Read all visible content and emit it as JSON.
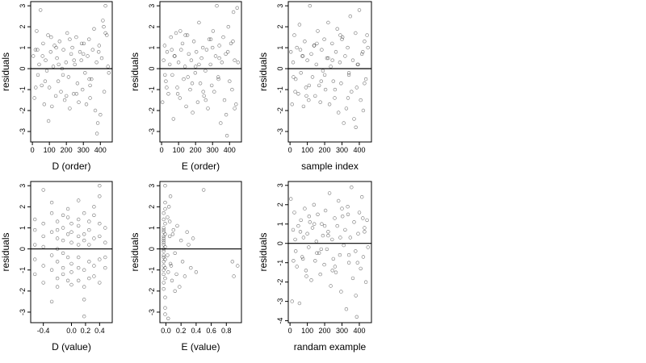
{
  "chart_data": [
    {
      "type": "scatter",
      "xlabel": "D (order)",
      "ylabel": "residuals",
      "xlim": [
        -10,
        470
      ],
      "ylim": [
        -3.5,
        3.2
      ],
      "xticks": [
        0,
        100,
        200,
        300,
        400
      ],
      "yticks": [
        -3,
        -2,
        -1,
        0,
        1,
        2,
        3
      ],
      "hline": 0,
      "grid": false,
      "x": [
        5,
        12,
        18,
        25,
        33,
        40,
        48,
        55,
        63,
        70,
        78,
        85,
        92,
        100,
        108,
        115,
        123,
        130,
        138,
        145,
        152,
        160,
        168,
        175,
        183,
        190,
        198,
        205,
        213,
        220,
        228,
        235,
        243,
        250,
        258,
        265,
        273,
        280,
        288,
        295,
        303,
        310,
        318,
        325,
        333,
        340,
        348,
        355,
        363,
        370,
        378,
        385,
        393,
        400,
        408,
        415,
        423,
        430,
        438,
        445,
        20,
        60,
        95,
        140,
        180,
        220,
        260,
        300,
        340,
        380,
        420,
        30,
        75,
        110,
        155,
        200,
        245,
        290,
        335,
        390,
        430,
        450
      ],
      "y": [
        0.6,
        -1.4,
        0.9,
        1.8,
        -0.3,
        0.2,
        2.8,
        -0.8,
        1.2,
        -1.7,
        0.4,
        -0.1,
        1.6,
        -0.9,
        0.8,
        -1.8,
        0.1,
        1.1,
        -1.3,
        0.5,
        -0.6,
        1.3,
        -1.1,
        0.0,
        0.9,
        -1.5,
        0.3,
        1.7,
        -0.4,
        -1.9,
        0.7,
        1.0,
        -1.2,
        0.2,
        1.5,
        -0.7,
        -1.6,
        0.8,
        0.4,
        -1.0,
        1.2,
        -0.2,
        -1.7,
        0.6,
        1.4,
        -1.4,
        -0.5,
        0.9,
        1.9,
        -2.0,
        0.3,
        -2.6,
        1.1,
        -2.2,
        0.5,
        2.3,
        -1.1,
        3.0,
        1.6,
        0.1,
        -0.9,
        0.6,
        -2.5,
        1.0,
        -0.3,
        1.4,
        -1.2,
        0.7,
        -0.8,
        -3.1,
        2.0,
        0.9,
        -0.6,
        1.5,
        0.2,
        -1.3,
        0.4,
        1.2,
        -0.5,
        0.8,
        1.7,
        -0.2
      ]
    },
    {
      "type": "scatter",
      "xlabel": "E (order)",
      "ylabel": "residuals",
      "xlim": [
        -10,
        470
      ],
      "ylim": [
        -3.5,
        3.2
      ],
      "xticks": [
        0,
        100,
        200,
        300,
        400
      ],
      "yticks": [
        -3,
        -2,
        -1,
        0,
        1,
        2,
        3
      ],
      "hline": 0,
      "grid": false,
      "x": [
        5,
        12,
        18,
        25,
        33,
        40,
        48,
        55,
        63,
        70,
        78,
        85,
        92,
        100,
        108,
        115,
        123,
        130,
        138,
        145,
        152,
        160,
        168,
        175,
        183,
        190,
        198,
        205,
        213,
        220,
        228,
        235,
        243,
        250,
        258,
        265,
        273,
        280,
        288,
        295,
        303,
        310,
        318,
        325,
        333,
        340,
        348,
        355,
        363,
        370,
        378,
        385,
        393,
        400,
        408,
        415,
        423,
        430,
        438,
        445,
        20,
        60,
        95,
        140,
        180,
        220,
        260,
        300,
        340,
        380,
        420,
        30,
        75,
        110,
        155,
        200,
        245,
        290,
        335,
        390,
        430,
        450
      ],
      "y": [
        -1.6,
        0.4,
        1.1,
        -0.6,
        0.8,
        -1.2,
        0.2,
        1.5,
        -0.3,
        -2.4,
        0.6,
        1.7,
        -0.9,
        0.3,
        -1.4,
        0.9,
        1.2,
        -0.5,
        0.1,
        -1.8,
        1.6,
        0.7,
        -1.0,
        0.4,
        -2.1,
        1.3,
        -0.2,
        0.8,
        -1.6,
        2.2,
        -0.7,
        0.5,
        1.0,
        -1.3,
        -0.1,
        0.9,
        -1.9,
        1.4,
        0.2,
        -0.8,
        1.8,
        -1.1,
        0.6,
        3.0,
        -0.4,
        1.1,
        -2.6,
        0.3,
        1.5,
        -1.5,
        0.7,
        -3.2,
        2.0,
        -0.6,
        1.2,
        -1.0,
        2.7,
        0.4,
        -1.7,
        2.9,
        -0.3,
        0.9,
        -1.2,
        1.6,
        -0.7,
        0.2,
        -1.5,
        1.0,
        0.5,
        -2.2,
        1.3,
        -0.9,
        0.6,
        1.8,
        -0.4,
        0.1,
        -1.1,
        1.4,
        -0.5,
        0.8,
        -1.9,
        0.3
      ]
    },
    {
      "type": "scatter",
      "xlabel": "sample index",
      "ylabel": "residuals",
      "xlim": [
        -10,
        470
      ],
      "ylim": [
        -3.5,
        3.2
      ],
      "xticks": [
        0,
        100,
        200,
        300,
        400
      ],
      "yticks": [
        -3,
        -2,
        -1,
        0,
        1,
        2,
        3
      ],
      "hline": 0,
      "grid": false,
      "x": [
        5,
        12,
        18,
        25,
        33,
        40,
        48,
        55,
        63,
        70,
        78,
        85,
        92,
        100,
        108,
        115,
        123,
        130,
        138,
        145,
        152,
        160,
        168,
        175,
        183,
        190,
        198,
        205,
        213,
        220,
        228,
        235,
        243,
        250,
        258,
        265,
        273,
        280,
        288,
        295,
        303,
        310,
        318,
        325,
        333,
        340,
        348,
        355,
        363,
        370,
        378,
        385,
        393,
        400,
        408,
        415,
        423,
        430,
        438,
        445,
        20,
        60,
        95,
        140,
        180,
        220,
        260,
        300,
        340,
        380,
        420,
        30,
        75,
        110,
        155,
        200,
        245,
        290,
        335,
        390,
        430,
        450
      ],
      "y": [
        0.8,
        -1.7,
        0.3,
        1.6,
        -0.5,
        1.0,
        -1.2,
        2.1,
        -0.2,
        0.6,
        -1.8,
        1.3,
        -0.9,
        0.4,
        -1.5,
        3.0,
        0.7,
        -0.4,
        1.1,
        -1.3,
        0.2,
        1.8,
        -0.8,
        -1.6,
        0.9,
        -0.1,
        1.4,
        -1.0,
        0.5,
        2.2,
        -1.7,
        0.1,
        1.2,
        -0.6,
        -1.4,
        0.8,
        1.9,
        -2.1,
        0.3,
        -0.7,
        1.5,
        -2.6,
        0.6,
        -1.9,
        1.0,
        -0.3,
        2.5,
        -1.1,
        0.4,
        -2.4,
        1.7,
        -0.9,
        0.2,
        2.8,
        -1.5,
        0.7,
        -2.0,
        1.3,
        -0.5,
        1.6,
        -0.4,
        0.9,
        -1.3,
        1.1,
        -0.6,
        0.5,
        -1.0,
        1.4,
        -0.2,
        -2.8,
        0.8,
        -1.1,
        0.6,
        -0.8,
        1.2,
        -0.3,
        0.4,
        1.6,
        -1.4,
        0.2,
        -0.7,
        1.0
      ]
    },
    {
      "type": "scatter",
      "xlabel": "D (value)",
      "ylabel": "residuals",
      "xlim": [
        -0.58,
        0.58
      ],
      "ylim": [
        -3.5,
        3.2
      ],
      "xticks": [
        -0.4,
        0.0,
        0.2,
        0.4
      ],
      "xticklabels": [
        "-0.4",
        "0.0",
        "0.2",
        "0.4"
      ],
      "yticks": [
        -3,
        -2,
        -1,
        0,
        1,
        2,
        3
      ],
      "hline": 0,
      "grid": false,
      "x": [
        -0.52,
        -0.52,
        -0.52,
        -0.52,
        -0.52,
        -0.4,
        -0.4,
        -0.4,
        -0.4,
        -0.4,
        -0.4,
        -0.28,
        -0.28,
        -0.28,
        -0.28,
        -0.28,
        -0.28,
        -0.2,
        -0.2,
        -0.2,
        -0.2,
        -0.2,
        -0.2,
        -0.2,
        -0.12,
        -0.12,
        -0.12,
        -0.12,
        -0.12,
        -0.12,
        -0.05,
        -0.05,
        -0.05,
        -0.05,
        -0.05,
        0.0,
        0.0,
        0.0,
        0.0,
        0.0,
        0.0,
        0.1,
        0.1,
        0.1,
        0.1,
        0.1,
        0.1,
        0.1,
        0.1,
        0.18,
        0.18,
        0.18,
        0.18,
        0.18,
        0.18,
        0.18,
        0.25,
        0.25,
        0.25,
        0.25,
        0.25,
        0.32,
        0.32,
        0.32,
        0.32,
        0.32,
        0.4,
        0.4,
        0.4,
        0.4,
        0.4,
        0.4,
        0.48,
        0.48,
        0.48,
        0.48
      ],
      "y": [
        0.9,
        -0.5,
        1.4,
        -1.2,
        0.2,
        2.8,
        0.6,
        -0.8,
        1.2,
        -1.6,
        0.1,
        1.7,
        -0.3,
        0.8,
        -1.0,
        2.2,
        -2.5,
        0.5,
        -1.8,
        1.3,
        -0.6,
        0.9,
        -1.4,
        0.0,
        1.0,
        -0.9,
        1.6,
        -1.2,
        0.4,
        -0.2,
        0.7,
        -1.5,
        1.5,
        -0.4,
        1.9,
        -1.7,
        0.3,
        1.2,
        -0.7,
        -1.1,
        0.8,
        1.1,
        0.6,
        -0.9,
        0.2,
        1.4,
        -0.4,
        -1.5,
        2.3,
        -1.8,
        0.7,
        -3.2,
        -1.0,
        0.4,
        1.7,
        -2.4,
        0.9,
        -0.6,
        1.3,
        -1.4,
        0.2,
        1.6,
        -0.8,
        0.5,
        -1.3,
        2.0,
        3.0,
        1.2,
        -0.5,
        0.6,
        -1.6,
        2.5,
        0.3,
        -0.9,
        1.0,
        -0.4
      ]
    },
    {
      "type": "scatter",
      "xlabel": "E (value)",
      "ylabel": "residuals",
      "xlim": [
        -0.08,
        1.0
      ],
      "ylim": [
        -3.5,
        3.2
      ],
      "xticks": [
        0.0,
        0.2,
        0.4,
        0.6,
        0.8
      ],
      "xticklabels": [
        "0.0",
        "0.2",
        "0.4",
        "0.6",
        "0.8"
      ],
      "yticks": [
        -3,
        -2,
        -1,
        0,
        1,
        2,
        3
      ],
      "hline": 0,
      "grid": false,
      "x": [
        -0.03,
        -0.03,
        -0.03,
        -0.03,
        -0.03,
        -0.03,
        -0.03,
        -0.03,
        -0.03,
        -0.03,
        -0.03,
        -0.03,
        -0.03,
        -0.03,
        -0.03,
        -0.03,
        -0.03,
        -0.03,
        -0.03,
        -0.03,
        -0.01,
        -0.01,
        -0.01,
        -0.01,
        -0.01,
        -0.01,
        -0.01,
        -0.01,
        -0.01,
        -0.01,
        -0.01,
        -0.01,
        0.02,
        0.03,
        0.05,
        0.06,
        0.04,
        0.08,
        0.1,
        0.12,
        0.15,
        0.18,
        0.2,
        0.22,
        0.25,
        0.28,
        0.3,
        0.33,
        0.36,
        0.4,
        0.5,
        0.02,
        0.05,
        0.07,
        0.09,
        0.14,
        0.9,
        0.95,
        0.88,
        0.12,
        0.03,
        0.06
      ],
      "y": [
        -0.4,
        0.2,
        0.6,
        -0.8,
        1.0,
        -1.2,
        0.4,
        -0.1,
        0.8,
        -0.6,
        1.4,
        -1.6,
        0.3,
        -0.3,
        0.9,
        -1.0,
        1.7,
        -1.9,
        0.0,
        0.5,
        -0.5,
        0.7,
        -0.9,
        1.2,
        -1.4,
        0.1,
        2.2,
        -2.8,
        1.9,
        -2.3,
        3.0,
        -3.1,
        1.5,
        -1.1,
        0.6,
        -0.7,
        2.0,
        -1.5,
        0.9,
        -0.2,
        1.1,
        -1.8,
        0.4,
        -0.6,
        -1.3,
        0.8,
        0.2,
        -0.9,
        0.5,
        -1.1,
        2.8,
        -0.3,
        1.3,
        -0.8,
        0.7,
        -1.2,
        -1.3,
        -0.8,
        -0.6,
        -2.0,
        -3.3,
        2.5
      ]
    },
    {
      "type": "scatter",
      "xlabel": "randam example",
      "ylabel": "residuals",
      "xlim": [
        -10,
        470
      ],
      "ylim": [
        -4.1,
        3.2
      ],
      "xticks": [
        0,
        100,
        200,
        300,
        400
      ],
      "yticks": [
        -4,
        -3,
        -2,
        -1,
        0,
        1,
        2,
        3
      ],
      "hline": 0,
      "grid": false,
      "x": [
        5,
        12,
        18,
        25,
        33,
        40,
        48,
        55,
        63,
        70,
        78,
        85,
        92,
        100,
        108,
        115,
        123,
        130,
        138,
        145,
        152,
        160,
        168,
        175,
        183,
        190,
        198,
        205,
        213,
        220,
        228,
        235,
        243,
        250,
        258,
        265,
        273,
        280,
        288,
        295,
        303,
        310,
        318,
        325,
        333,
        340,
        348,
        355,
        363,
        370,
        378,
        385,
        393,
        400,
        408,
        415,
        423,
        430,
        438,
        445,
        20,
        60,
        95,
        140,
        180,
        220,
        260,
        300,
        340,
        380,
        420,
        30,
        75,
        110,
        155,
        200,
        245,
        290,
        335,
        390,
        430,
        450
      ],
      "y": [
        2.3,
        -3.0,
        0.7,
        1.6,
        -0.4,
        -1.2,
        0.9,
        -3.1,
        1.2,
        -0.7,
        0.3,
        1.8,
        -1.4,
        0.5,
        -0.2,
        1.1,
        -1.9,
        0.8,
        2.0,
        -0.9,
        0.1,
        1.5,
        -0.5,
        -1.6,
        1.0,
        0.4,
        -1.1,
        1.7,
        -0.3,
        0.6,
        2.6,
        -2.2,
        0.2,
        -0.8,
        1.3,
        -1.5,
        0.9,
        2.2,
        -0.6,
        -2.5,
        1.4,
        -0.1,
        0.7,
        -3.4,
        1.9,
        -1.0,
        0.3,
        2.9,
        -1.8,
        1.1,
        -0.4,
        -3.8,
        0.5,
        1.6,
        -1.3,
        2.4,
        -0.7,
        0.8,
        -2.0,
        1.2,
        -0.9,
        0.6,
        -1.7,
        1.0,
        -0.3,
        0.4,
        -1.2,
        1.8,
        -0.6,
        -2.7,
        1.3,
        0.2,
        -0.8,
        1.4,
        -0.5,
        0.9,
        -1.4,
        0.3,
        1.5,
        -1.0,
        0.6,
        -0.2
      ]
    }
  ]
}
